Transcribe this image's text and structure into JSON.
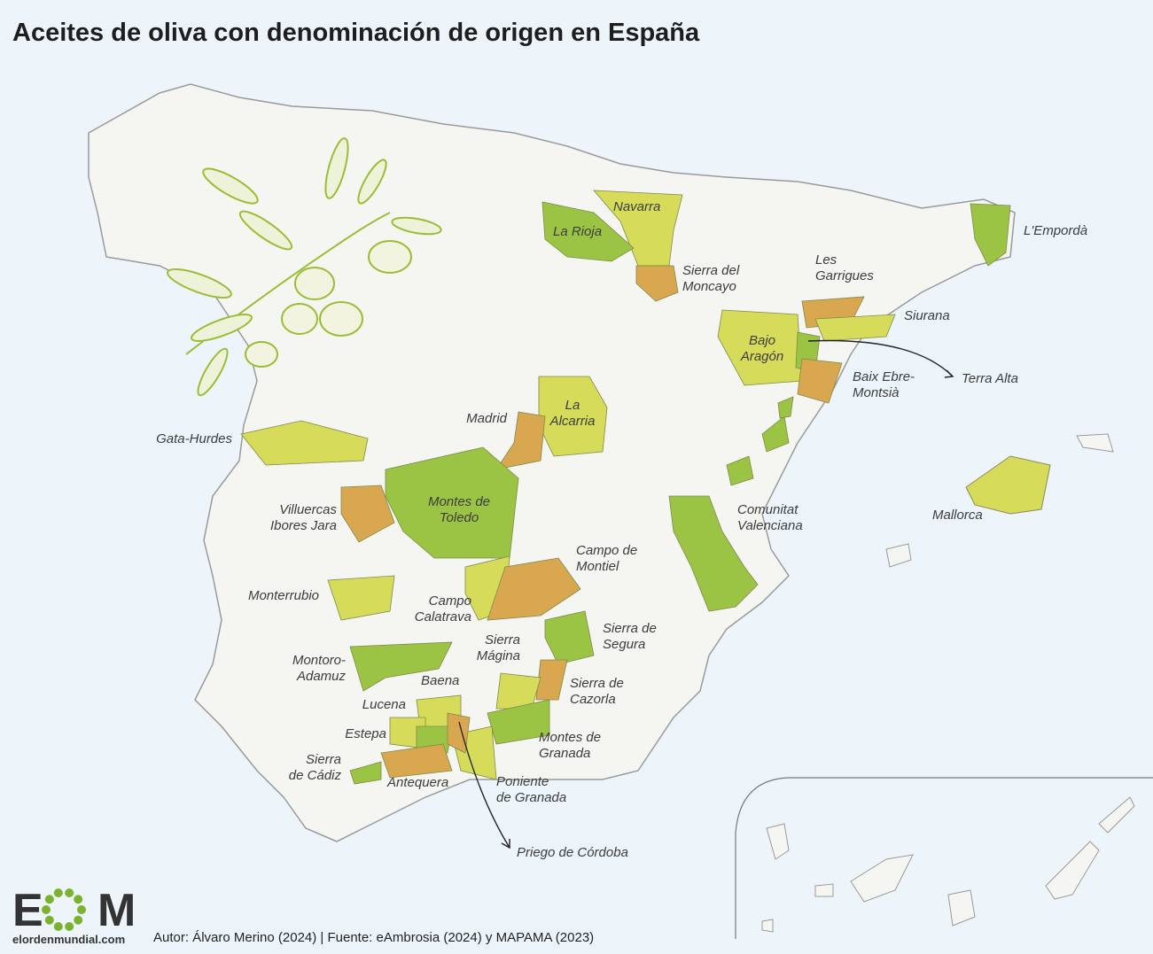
{
  "title": "Aceites de oliva con denominación de origen en España",
  "labels": [
    [
      "Navarra"
    ],
    [
      "La Rioja"
    ],
    [
      "L'Empordà"
    ],
    [
      "Sierra del",
      "Moncayo"
    ],
    [
      "Les",
      "Garrigues"
    ],
    [
      "Siurana"
    ],
    [
      "Bajo",
      "Aragón"
    ],
    [
      "Terra Alta"
    ],
    [
      "Baix Ebre-",
      "Montsià"
    ],
    [
      "Madrid"
    ],
    [
      "La",
      "Alcarria"
    ],
    [
      "Gata-Hurdes"
    ],
    [
      "Villuercas",
      "Ibores Jara"
    ],
    [
      "Montes de",
      "Toledo"
    ],
    [
      "Comunitat",
      "Valenciana"
    ],
    [
      "Mallorca"
    ],
    [
      "Campo de",
      "Montiel"
    ],
    [
      "Monterrubio"
    ],
    [
      "Campo",
      "Calatrava"
    ],
    [
      "Sierra de",
      "Segura"
    ],
    [
      "Sierra",
      "Mágina"
    ],
    [
      "Montoro-",
      "Adamuz"
    ],
    [
      "Baena"
    ],
    [
      "Sierra de",
      "Cazorla"
    ],
    [
      "Lucena"
    ],
    [
      "Estepa"
    ],
    [
      "Montes de",
      "Granada"
    ],
    [
      "Sierra",
      "de Cádiz"
    ],
    [
      "Antequera"
    ],
    [
      "Poniente",
      "de Granada"
    ],
    [
      "Priego de Córdoba"
    ]
  ],
  "logo": {
    "left": "E",
    "right": "M",
    "site": "elordenmundial.com"
  },
  "credit": "Autor: Álvaro Merino (2024) | Fuente: eAmbrosia (2024) y MAPAMA (2023)"
}
